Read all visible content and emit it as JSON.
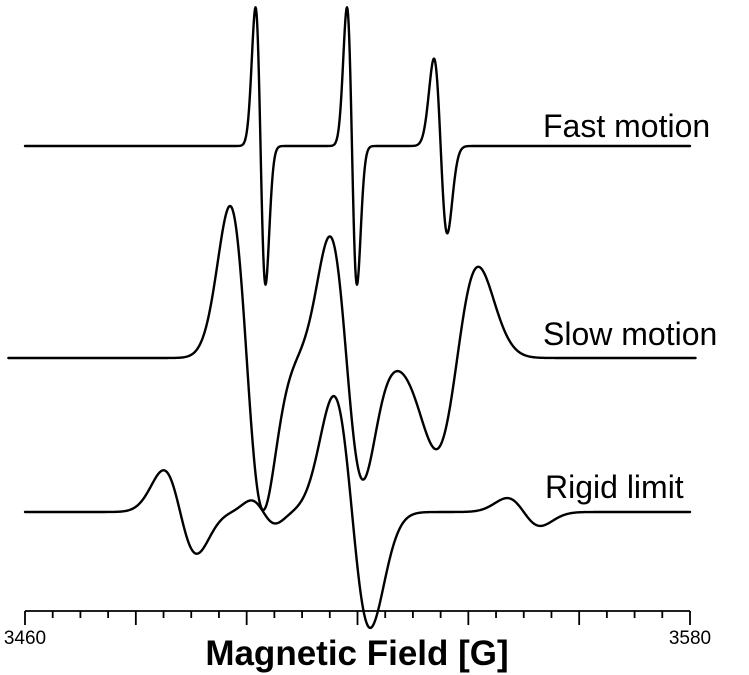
{
  "chart_data": {
    "type": "line",
    "title": "",
    "xlabel": "Magnetic Field [G]",
    "ylabel": "",
    "xlim": [
      3460,
      3580
    ],
    "x_tick_labels": [
      "3460",
      "3580"
    ],
    "minor_tick_step": 5,
    "major_tick_step": 20,
    "grid": false,
    "legend": "none",
    "line_color": "#000000",
    "series": [
      {
        "name": "Fast motion",
        "x_range": [
          3460,
          3580
        ],
        "peaks": [
          {
            "center": 3502.5,
            "width": 0.9,
            "amplitude": 1.0
          },
          {
            "center": 3519.0,
            "width": 0.9,
            "amplitude": 1.0
          },
          {
            "center": 3535.0,
            "width": 1.2,
            "amplitude": 0.63
          }
        ]
      },
      {
        "name": "Slow motion",
        "x_range": [
          3457,
          3581
        ],
        "peaks": [
          {
            "center": 3500.0,
            "width": 3.0,
            "amplitude": 1.0
          },
          {
            "center": 3518.0,
            "width": 3.0,
            "amplitude": 0.8
          },
          {
            "center": 3538.0,
            "width": 3.8,
            "amplitude": -0.6
          }
        ]
      },
      {
        "name": "Rigid limit",
        "x_range": [
          3460,
          3580
        ],
        "peaks": [
          {
            "center": 3488.0,
            "width": 3.0,
            "amplitude": 0.36
          },
          {
            "center": 3503.0,
            "width": 2.2,
            "amplitude": 0.1
          },
          {
            "center": 3519.0,
            "width": 3.3,
            "amplitude": 1.0
          },
          {
            "center": 3550.0,
            "width": 3.0,
            "amplitude": 0.12
          }
        ]
      }
    ]
  }
}
